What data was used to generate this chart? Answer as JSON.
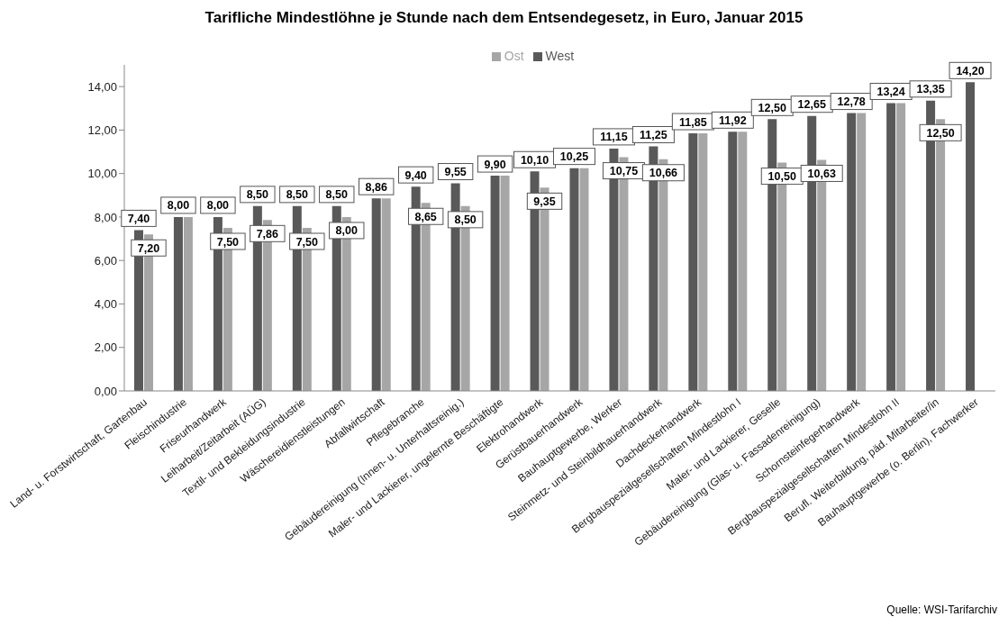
{
  "chart_data": {
    "type": "bar",
    "title": "Tarifliche Mindestlöhne je Stunde nach dem Entsendegesetz, in Euro, Januar 2015",
    "categories": [
      "Land- u. Forstwirtschaft, Gartenbau",
      "Fleischindustrie",
      "Friseurhandwerk",
      "Leiharbeit/Zeitarbeit (AÜG)",
      "Textil- und Bekleidungsindustrie",
      "Wäschereidienstleistungen",
      "Abfallwirtschaft",
      "Pflegebranche",
      "Gebäudereinigung (Innen- u. Unterhaltsreinig.)",
      "Maler- und Lackierer, ungelernte Beschäftigte",
      "Elektrohandwerk",
      "Gerüstbauerhandwerk",
      "Bauhauptgewerbe, Werker",
      "Steinmetz- und Steinbildhauerhandwerk",
      "Dachdeckerhandwerk",
      "Bergbauspezialgesellschaften Mindestlohn I",
      "Maler- und Lackierer, Geselle",
      "Gebäudereinigung (Glas- u. Fassadenreinigung)",
      "Schornsteinfegerhandwerk",
      "Bergbauspezialgesellschaften Mindestlohn II",
      "Berufl. Weiterbildung, päd. Mitarbeiter/in",
      "Bauhauptgewerbe (o. Berlin), Fachwerker"
    ],
    "series": [
      {
        "name": "West",
        "color": "#595959",
        "values": [
          7.4,
          8.0,
          8.0,
          8.5,
          8.5,
          8.5,
          8.86,
          9.4,
          9.55,
          9.9,
          10.1,
          10.25,
          11.15,
          11.25,
          11.85,
          11.92,
          12.5,
          12.65,
          12.78,
          13.24,
          13.35,
          14.2
        ],
        "value_labels": [
          "7,40",
          "8,00",
          "8,00",
          "8,50",
          "8,50",
          "8,50",
          "8,86",
          "9,40",
          "9,55",
          "9,90",
          "10,10",
          "10,25",
          "11,15",
          "11,25",
          "11,85",
          "11,92",
          "12,50",
          "12,65",
          "12,78",
          "13,24",
          "13,35",
          "14,20"
        ]
      },
      {
        "name": "Ost",
        "color": "#a6a6a6",
        "values": [
          7.2,
          8.0,
          7.5,
          7.86,
          7.5,
          8.0,
          8.86,
          8.65,
          8.5,
          9.9,
          9.35,
          10.25,
          10.75,
          10.66,
          11.85,
          11.92,
          10.5,
          10.63,
          12.78,
          13.24,
          12.5,
          null
        ],
        "value_labels": [
          "7,20",
          null,
          "7,50",
          "7,86",
          "7,50",
          "8,00",
          null,
          "8,65",
          "8,50",
          null,
          "9,35",
          null,
          "10,75",
          "10,66",
          null,
          null,
          "10,50",
          "10,63",
          null,
          null,
          "12,50",
          null
        ]
      }
    ],
    "ylim": [
      0,
      15
    ],
    "yticks": [
      {
        "value": 0,
        "label": "0,00"
      },
      {
        "value": 2,
        "label": "2,00"
      },
      {
        "value": 4,
        "label": "4,00"
      },
      {
        "value": 6,
        "label": "6,00"
      },
      {
        "value": 8,
        "label": "8,00"
      },
      {
        "value": 10,
        "label": "10,00"
      },
      {
        "value": 12,
        "label": "12,00"
      },
      {
        "value": 14,
        "label": "14,00"
      }
    ],
    "grid": false,
    "legend": "top",
    "annotations": [
      "Quelle: WSI-Tarifarchiv"
    ]
  }
}
